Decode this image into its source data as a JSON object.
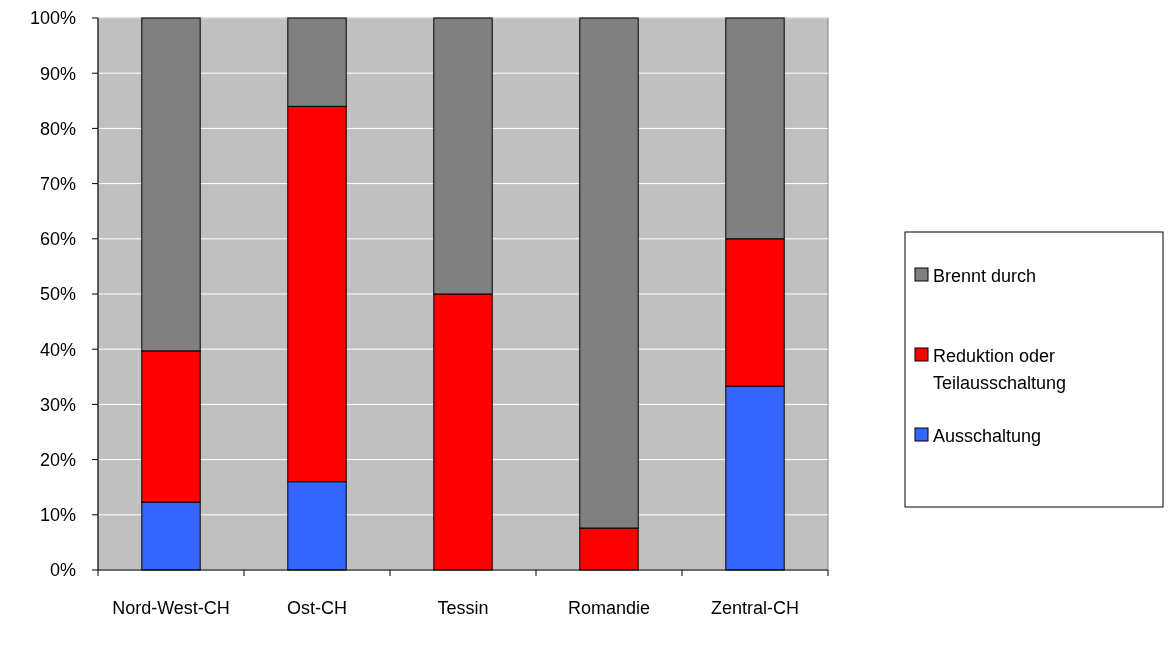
{
  "chart_data": {
    "type": "bar",
    "stacked": true,
    "categories": [
      "Nord-West-CH",
      "Ost-CH",
      "Tessin",
      "Romandie",
      "Zentral-CH"
    ],
    "series": [
      {
        "name": "Ausschaltung",
        "color": "#3366ff",
        "values": [
          12.3,
          16,
          0,
          0,
          33.3
        ]
      },
      {
        "name": "Reduktion oder Teilausschaltung",
        "color": "#ff0000",
        "values": [
          27.4,
          68,
          50,
          7.6,
          26.7
        ]
      },
      {
        "name": "Brennt durch",
        "color": "#808080",
        "values": [
          60.3,
          16,
          50,
          92.4,
          40
        ]
      }
    ],
    "ylim": [
      0,
      100
    ],
    "yticks": [
      {
        "value": 0,
        "label": "0%"
      },
      {
        "value": 10,
        "label": "10%"
      },
      {
        "value": 20,
        "label": "20%"
      },
      {
        "value": 30,
        "label": "30%"
      },
      {
        "value": 40,
        "label": "40%"
      },
      {
        "value": 50,
        "label": "50%"
      },
      {
        "value": 60,
        "label": "60%"
      },
      {
        "value": 70,
        "label": "70%"
      },
      {
        "value": 80,
        "label": "80%"
      },
      {
        "value": 90,
        "label": "90%"
      },
      {
        "value": 100,
        "label": "100%"
      }
    ],
    "grid": "y",
    "legend": "right"
  }
}
